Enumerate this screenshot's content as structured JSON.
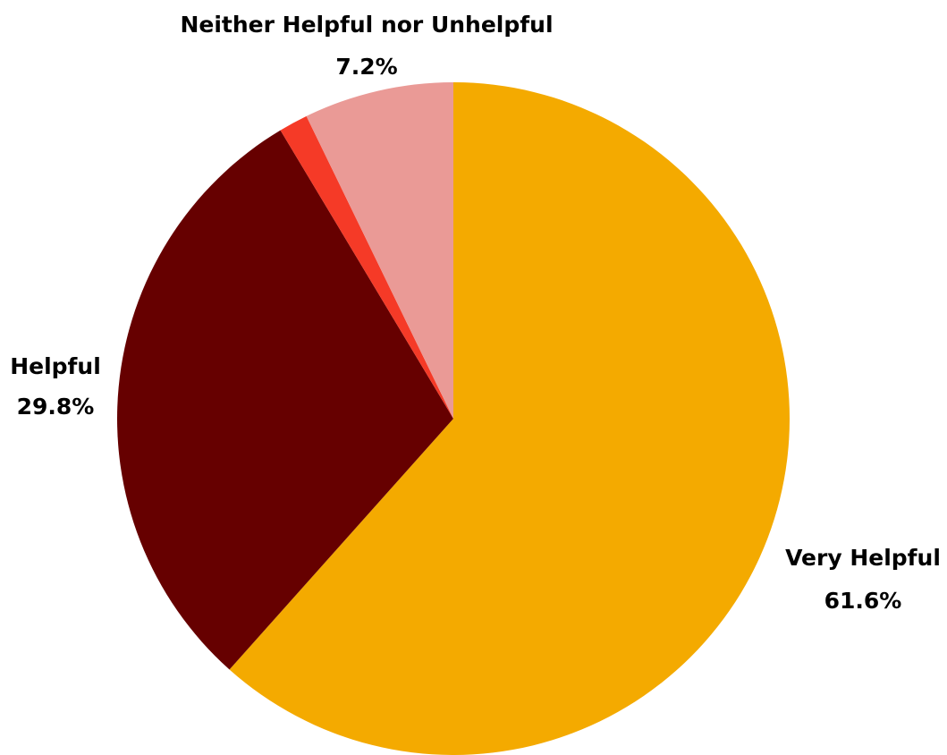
{
  "chart_data": {
    "type": "pie",
    "title": "",
    "start": "12 o'clock, clockwise",
    "slices": [
      {
        "label": "Very Helpful",
        "value": 61.6,
        "display": "61.6%",
        "color": "#F4AA00",
        "labelled": true
      },
      {
        "label": "Helpful",
        "value": 29.8,
        "display": "29.8%",
        "color": "#660000",
        "labelled": true
      },
      {
        "label": "",
        "value": 1.4,
        "display": "",
        "color": "#F53A27",
        "labelled": false
      },
      {
        "label": "Neither Helpful nor Unhelpful",
        "value": 7.2,
        "display": "7.2%",
        "color": "#EA9A96",
        "labelled": true
      }
    ]
  }
}
